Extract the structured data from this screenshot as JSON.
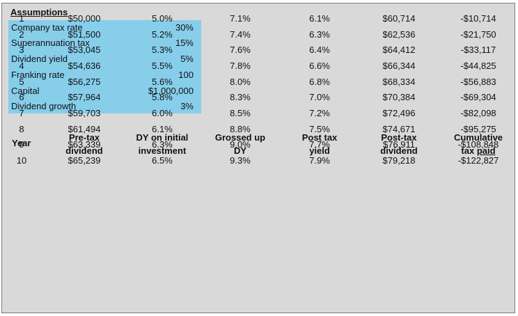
{
  "assumptions": {
    "title": "Assumptions",
    "rows": [
      {
        "label": "Company tax rate",
        "value": "30%"
      },
      {
        "label": "Superannuation tax",
        "value": "15%"
      },
      {
        "label": "Dividend yield",
        "value": "5%"
      },
      {
        "label": "Franking rate",
        "value": "100"
      },
      {
        "label": "Capital",
        "value": "$1,000,000"
      },
      {
        "label": "Dividend growth",
        "value": "3%"
      }
    ]
  },
  "table": {
    "headers": {
      "year": "Year",
      "pretax_1": "Pre-tax",
      "pretax_2": "dividend",
      "dy_1": "DY on initial",
      "dy_2": "investment",
      "gross_1": "Grossed up",
      "gross_2": "DY",
      "post_yield_1": "Post tax",
      "post_yield_2": "yield",
      "post_div_1": "Post-tax",
      "post_div_2": "dividend",
      "cum_1": "Cumulative",
      "cum_2a": "tax ",
      "cum_2b": "paid"
    },
    "rows": [
      [
        "1",
        "$50,000",
        "5.0%",
        "7.1%",
        "6.1%",
        "$60,714",
        "-$10,714"
      ],
      [
        "2",
        "$51,500",
        "5.2%",
        "7.4%",
        "6.3%",
        "$62,536",
        "-$21,750"
      ],
      [
        "3",
        "$53,045",
        "5.3%",
        "7.6%",
        "6.4%",
        "$64,412",
        "-$33,117"
      ],
      [
        "4",
        "$54,636",
        "5.5%",
        "7.8%",
        "6.6%",
        "$66,344",
        "-$44,825"
      ],
      [
        "5",
        "$56,275",
        "5.6%",
        "8.0%",
        "6.8%",
        "$68,334",
        "-$56,883"
      ],
      [
        "6",
        "$57,964",
        "5.8%",
        "8.3%",
        "7.0%",
        "$70,384",
        "-$69,304"
      ],
      [
        "7",
        "$59,703",
        "6.0%",
        "8.5%",
        "7.2%",
        "$72,496",
        "-$82,098"
      ],
      [
        "8",
        "$61,494",
        "6.1%",
        "8.8%",
        "7.5%",
        "$74,671",
        "-$95,275"
      ],
      [
        "9",
        "$63,339",
        "6.3%",
        "9.0%",
        "7.7%",
        "$76,911",
        "-$108,848"
      ],
      [
        "10",
        "$65,239",
        "6.5%",
        "9.3%",
        "7.9%",
        "$79,218",
        "-$122,827"
      ]
    ]
  }
}
